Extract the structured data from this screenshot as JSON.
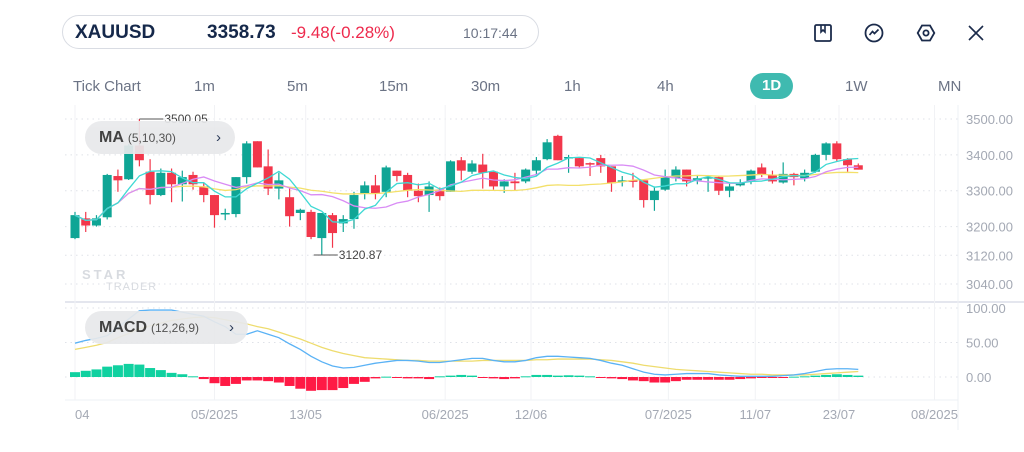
{
  "header": {
    "symbol": "XAUUSD",
    "price": "3358.73",
    "change": "-9.48(-0.28%)",
    "time": "10:17:44"
  },
  "toolbar": {
    "icons": [
      "bookmark-icon",
      "indicator-icon",
      "settings-icon",
      "close-icon"
    ]
  },
  "timeframes": [
    {
      "label": "Tick Chart"
    },
    {
      "label": "1m"
    },
    {
      "label": "5m"
    },
    {
      "label": "15m"
    },
    {
      "label": "30m"
    },
    {
      "label": "1h"
    },
    {
      "label": "4h"
    },
    {
      "label": "1D",
      "active": true
    },
    {
      "label": "1W"
    },
    {
      "label": "MN"
    }
  ],
  "indicators": {
    "ma": {
      "name": "MA",
      "params": "(5,10,30)"
    },
    "macd": {
      "name": "MACD",
      "params": "(12,26,9)"
    }
  },
  "watermark": {
    "line1": "STAR",
    "line2": "TRADER"
  },
  "colors": {
    "up": "#0fa595",
    "down": "#f2374b",
    "ma5": "#3fd9d4",
    "ma10": "#d98cf5",
    "ma30": "#f3e06a",
    "macd": "#5ab2f5",
    "signal": "#eedc6e",
    "hist_up": "#10d1a0",
    "hist_down": "#ff1a45",
    "active_tab": "#3fbab0"
  },
  "chart_data": {
    "type": "candlestick",
    "price_axis": {
      "ticks": [
        "3500.00",
        "3400.00",
        "3300.00",
        "3200.00",
        "3120.00",
        "3040.00"
      ],
      "range": [
        3040,
        3500
      ]
    },
    "macd_axis": {
      "ticks": [
        "100.00",
        "50.00",
        "0.00"
      ]
    },
    "x_labels": [
      {
        "label": "04",
        "index": 0
      },
      {
        "label": "05/2025",
        "index": 13
      },
      {
        "label": "13/05",
        "index": 21.5
      },
      {
        "label": "06/2025",
        "index": 34.5
      },
      {
        "label": "12/06",
        "index": 42.5
      },
      {
        "label": "07/2025",
        "index": 55.3
      },
      {
        "label": "11/07",
        "index": 63.4
      },
      {
        "label": "23/07",
        "index": 71.2
      },
      {
        "label": "08/2025",
        "index": 80.1
      }
    ],
    "high_marker": {
      "label": "3500.05",
      "value": 3500.05,
      "index": 6
    },
    "low_marker": {
      "label": "3120.87",
      "value": 3120.87,
      "index": 23
    },
    "ohlc": [
      [
        3168,
        3241,
        3165,
        3232
      ],
      [
        3223,
        3241,
        3185,
        3203
      ],
      [
        3203,
        3232,
        3200,
        3223
      ],
      [
        3226,
        3347,
        3220,
        3344
      ],
      [
        3341,
        3359,
        3297,
        3329
      ],
      [
        3332,
        3430,
        3330,
        3426
      ],
      [
        3426,
        3500,
        3368,
        3385
      ],
      [
        3353,
        3388,
        3262,
        3288
      ],
      [
        3288,
        3362,
        3285,
        3350
      ],
      [
        3350,
        3362,
        3268,
        3318
      ],
      [
        3318,
        3356,
        3270,
        3338
      ],
      [
        3344,
        3353,
        3303,
        3318
      ],
      [
        3312,
        3323,
        3268,
        3288
      ],
      [
        3288,
        3288,
        3197,
        3232
      ],
      [
        3235,
        3250,
        3218,
        3238
      ],
      [
        3235,
        3338,
        3226,
        3338
      ],
      [
        3338,
        3438,
        3320,
        3432
      ],
      [
        3438,
        3438,
        3365,
        3365
      ],
      [
        3368,
        3415,
        3288,
        3306
      ],
      [
        3306,
        3350,
        3276,
        3329
      ],
      [
        3282,
        3306,
        3200,
        3229
      ],
      [
        3238,
        3250,
        3218,
        3247
      ],
      [
        3241,
        3247,
        3165,
        3171
      ],
      [
        3168,
        3238,
        3121,
        3238
      ],
      [
        3232,
        3238,
        3141,
        3182
      ],
      [
        3209,
        3232,
        3185,
        3221
      ],
      [
        3221,
        3297,
        3194,
        3288
      ],
      [
        3291,
        3326,
        3276,
        3315
      ],
      [
        3315,
        3344,
        3276,
        3291
      ],
      [
        3297,
        3370,
        3282,
        3365
      ],
      [
        3356,
        3356,
        3326,
        3341
      ],
      [
        3344,
        3350,
        3282,
        3300
      ],
      [
        3300,
        3320,
        3268,
        3285
      ],
      [
        3288,
        3326,
        3241,
        3312
      ],
      [
        3303,
        3309,
        3273,
        3285
      ],
      [
        3297,
        3385,
        3297,
        3382
      ],
      [
        3385,
        3394,
        3329,
        3356
      ],
      [
        3353,
        3385,
        3347,
        3376
      ],
      [
        3373,
        3403,
        3306,
        3350
      ],
      [
        3353,
        3353,
        3303,
        3312
      ],
      [
        3312,
        3332,
        3294,
        3326
      ],
      [
        3326,
        3350,
        3300,
        3321
      ],
      [
        3326,
        3362,
        3321,
        3359
      ],
      [
        3356,
        3394,
        3341,
        3385
      ],
      [
        3388,
        3444,
        3385,
        3435
      ],
      [
        3453,
        3456,
        3385,
        3385
      ],
      [
        3391,
        3400,
        3350,
        3394
      ],
      [
        3391,
        3394,
        3365,
        3368
      ],
      [
        3377,
        3379,
        3341,
        3374
      ],
      [
        3391,
        3400,
        3350,
        3368
      ],
      [
        3368,
        3368,
        3297,
        3321
      ],
      [
        3326,
        3341,
        3312,
        3329
      ],
      [
        3329,
        3350,
        3309,
        3326
      ],
      [
        3329,
        3329,
        3253,
        3274
      ],
      [
        3274,
        3312,
        3244,
        3300
      ],
      [
        3303,
        3359,
        3300,
        3338
      ],
      [
        3335,
        3368,
        3326,
        3359
      ],
      [
        3359,
        3359,
        3312,
        3326
      ],
      [
        3329,
        3344,
        3318,
        3335
      ],
      [
        3335,
        3344,
        3297,
        3338
      ],
      [
        3338,
        3341,
        3288,
        3300
      ],
      [
        3300,
        3320,
        3282,
        3312
      ],
      [
        3315,
        3332,
        3312,
        3323
      ],
      [
        3326,
        3359,
        3318,
        3356
      ],
      [
        3365,
        3376,
        3338,
        3344
      ],
      [
        3344,
        3356,
        3320,
        3326
      ],
      [
        3323,
        3379,
        3320,
        3347
      ],
      [
        3347,
        3350,
        3315,
        3338
      ],
      [
        3335,
        3359,
        3326,
        3350
      ],
      [
        3353,
        3403,
        3350,
        3400
      ],
      [
        3400,
        3435,
        3385,
        3432
      ],
      [
        3432,
        3438,
        3382,
        3388
      ],
      [
        3388,
        3391,
        3353,
        3371
      ],
      [
        3371,
        3376,
        3359,
        3358.73
      ]
    ],
    "macd": [
      49,
      53,
      56,
      60,
      72,
      84,
      96,
      97,
      97,
      97,
      94,
      91,
      88,
      80,
      73,
      62,
      62,
      67,
      62,
      57,
      48,
      40,
      30,
      22,
      16,
      13,
      14,
      17,
      20,
      22,
      24,
      24,
      23,
      21,
      21,
      23,
      25,
      27,
      27,
      24,
      22,
      22,
      24,
      28,
      30,
      30,
      29,
      28,
      27,
      24,
      20,
      17,
      12,
      7,
      4,
      3,
      4,
      5,
      5,
      5,
      3,
      2,
      1,
      1,
      1,
      1,
      2,
      3,
      5,
      8,
      11,
      12,
      12,
      11
    ],
    "signal": [
      40,
      43,
      46,
      50,
      57,
      63,
      70,
      74,
      78,
      82,
      84,
      86,
      87,
      86,
      83,
      80,
      77,
      73,
      70,
      65,
      60,
      55,
      49,
      43,
      38,
      34,
      31,
      28,
      27,
      26,
      25,
      24,
      24,
      23,
      23,
      23,
      23,
      23,
      24,
      24,
      24,
      24,
      24,
      25,
      25,
      26,
      26,
      26,
      26,
      25,
      24,
      22,
      20,
      17,
      15,
      13,
      11,
      10,
      9,
      8,
      7,
      6,
      5,
      4,
      4,
      3,
      3,
      3,
      3,
      4,
      5,
      6,
      7,
      8
    ],
    "histogram": [
      7,
      9,
      11,
      15,
      17,
      19,
      18,
      13,
      10,
      6,
      4,
      1,
      -3,
      -9,
      -13,
      -10,
      -5,
      -5,
      -6,
      -8,
      -13,
      -17,
      -20,
      -19,
      -19,
      -16,
      -10,
      -7,
      -2,
      0.5,
      -1,
      -2,
      -2,
      -3,
      1,
      2,
      3,
      2,
      -1,
      -2,
      -3,
      -2,
      1,
      3,
      3,
      2,
      2.5,
      2,
      1,
      -1,
      -2,
      -3,
      -5,
      -6,
      -8,
      -8,
      -6,
      -4,
      -4,
      -4,
      -4,
      -4,
      -3,
      -2,
      -1,
      -1,
      -0.5,
      0.5,
      1,
      2,
      3,
      4,
      3,
      2
    ]
  }
}
